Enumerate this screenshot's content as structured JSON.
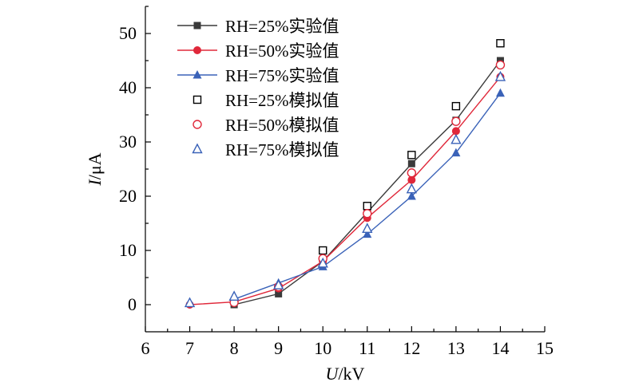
{
  "colors": {
    "series25": "#3a3a3a",
    "series50": "#e0283a",
    "series75": "#3a62b8",
    "sim25": "#000000"
  },
  "chart_data": {
    "type": "line",
    "xlabel_var": "U",
    "xlabel_unit": "/kV",
    "ylabel_var": "I",
    "ylabel_unit": "/μA",
    "xlim": [
      6,
      15
    ],
    "ylim": [
      -5,
      55
    ],
    "xticks": [
      6,
      7,
      8,
      9,
      10,
      11,
      12,
      13,
      14,
      15
    ],
    "yticks": [
      0,
      10,
      20,
      30,
      40,
      50
    ],
    "legend_position": "top-left",
    "series": [
      {
        "name": "RH=25%实验值",
        "kind": "experimental",
        "marker": "square",
        "color": "#3a3a3a",
        "x": [
          8,
          9,
          10,
          11,
          12,
          13,
          14
        ],
        "y": [
          0,
          2,
          8,
          17,
          26,
          34,
          45
        ]
      },
      {
        "name": "RH=50%实验值",
        "kind": "experimental",
        "marker": "circle",
        "color": "#e0283a",
        "x": [
          7,
          8,
          9,
          10,
          11,
          12,
          13,
          14
        ],
        "y": [
          0,
          0.5,
          3,
          8,
          16,
          23,
          32,
          42
        ]
      },
      {
        "name": "RH=75%实验值",
        "kind": "experimental",
        "marker": "triangle",
        "color": "#3a62b8",
        "x": [
          8,
          9,
          10,
          11,
          12,
          13,
          14
        ],
        "y": [
          1,
          4,
          7,
          13,
          20,
          28,
          39
        ]
      },
      {
        "name": "RH=25%模拟值",
        "kind": "simulated",
        "marker": "square-open",
        "color": "#000000",
        "x": [
          10,
          11,
          12,
          13,
          14
        ],
        "y": [
          10,
          18.2,
          27.6,
          36.6,
          48.2
        ]
      },
      {
        "name": "RH=50%模拟值",
        "kind": "simulated",
        "marker": "circle-open",
        "color": "#e0283a",
        "x": [
          8,
          9,
          10,
          11,
          12,
          13,
          14
        ],
        "y": [
          0.4,
          3.3,
          8.5,
          16.8,
          24.3,
          33.8,
          44.2
        ]
      },
      {
        "name": "RH=75%模拟值",
        "kind": "simulated",
        "marker": "triangle-open",
        "color": "#3a62b8",
        "x": [
          7,
          8,
          9,
          10,
          11,
          12,
          13,
          14
        ],
        "y": [
          0.3,
          1.5,
          3.6,
          7.6,
          14,
          21.3,
          30.4,
          42
        ]
      }
    ]
  }
}
